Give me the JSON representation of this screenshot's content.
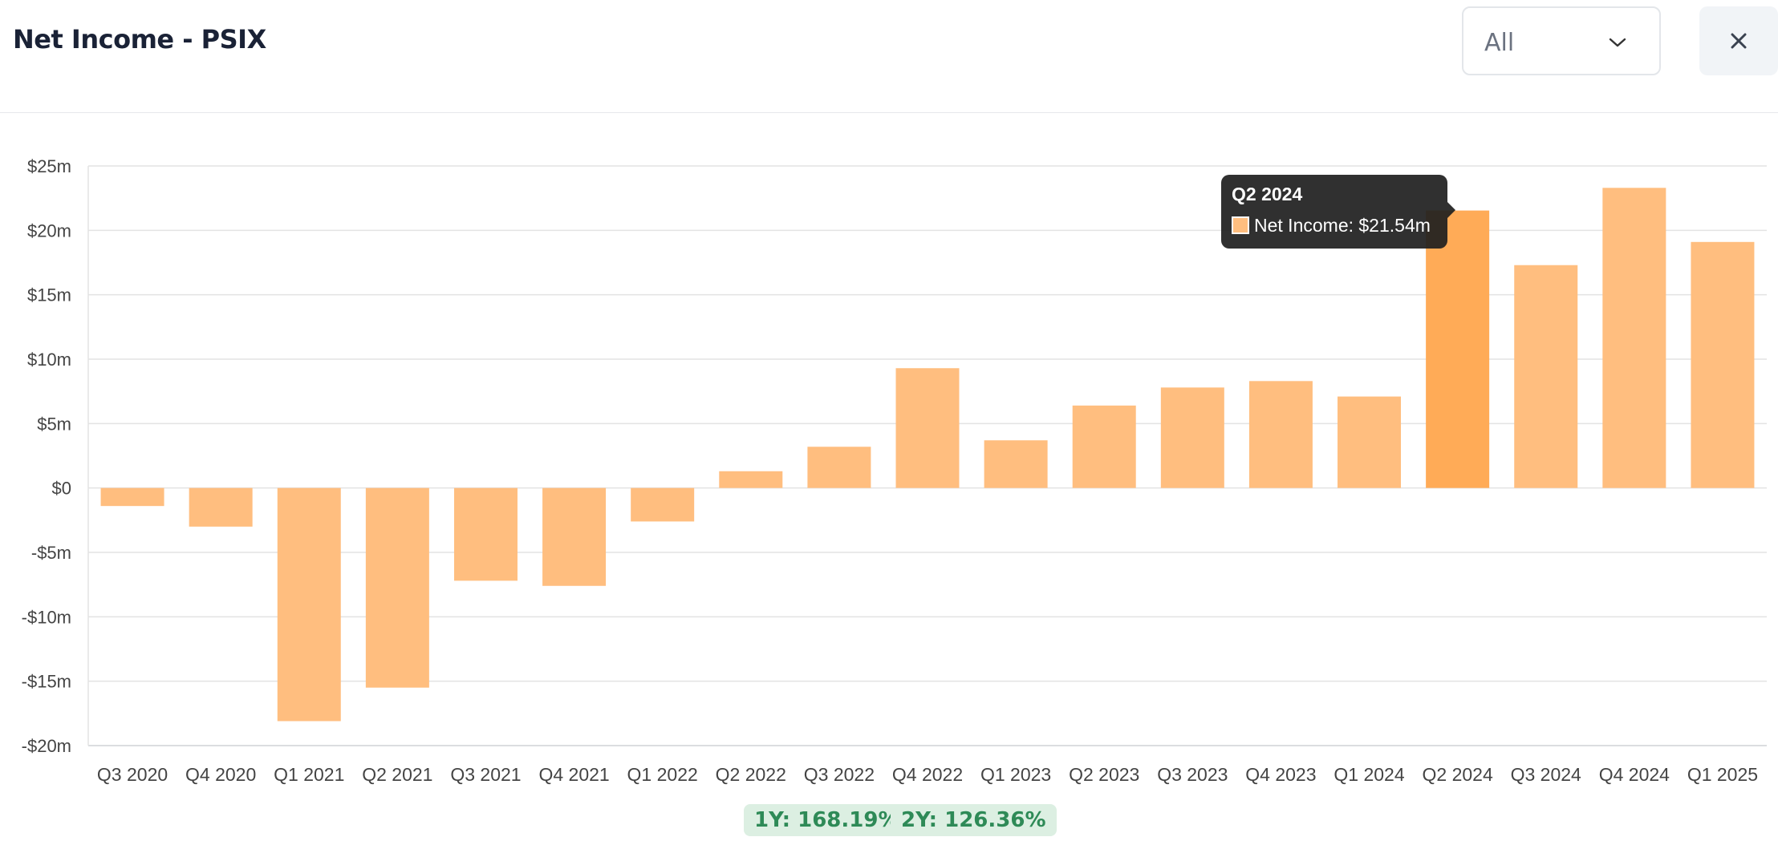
{
  "header": {
    "title": "Net Income - PSIX",
    "period_select": {
      "value": "All",
      "icon": "chevron-down-icon"
    },
    "close_icon": "close-icon"
  },
  "chart_data": {
    "type": "bar",
    "categories": [
      "Q3 2020",
      "Q4 2020",
      "Q1 2021",
      "Q2 2021",
      "Q3 2021",
      "Q4 2021",
      "Q1 2022",
      "Q2 2022",
      "Q3 2022",
      "Q4 2022",
      "Q1 2023",
      "Q2 2023",
      "Q3 2023",
      "Q4 2023",
      "Q1 2024",
      "Q2 2024",
      "Q3 2024",
      "Q4 2024",
      "Q1 2025"
    ],
    "series": [
      {
        "name": "Net Income",
        "values": [
          -1.4,
          -3.0,
          -18.1,
          -15.5,
          -7.2,
          -7.6,
          -2.6,
          1.3,
          3.2,
          9.3,
          3.7,
          6.4,
          7.8,
          8.3,
          7.1,
          21.54,
          17.3,
          23.3,
          19.1
        ]
      }
    ],
    "unit": "$m",
    "ylim": [
      -20,
      25
    ],
    "y_ticks": [
      25,
      20,
      15,
      10,
      5,
      0,
      -5,
      -10,
      -15,
      -20
    ],
    "y_tick_labels": [
      "$25m",
      "$20m",
      "$15m",
      "$10m",
      "$5m",
      "$0",
      "-$5m",
      "-$10m",
      "-$15m",
      "-$20m"
    ],
    "grid": true,
    "highlighted_category": "Q2 2024",
    "bar_color": "#ffbe7f",
    "highlight_color": "#ffab57",
    "tooltip": {
      "title": "Q2 2024",
      "label": "Net Income: $21.54m"
    }
  },
  "growth_badges": [
    {
      "label": "1Y: 168.19%"
    },
    {
      "label": "2Y: 126.36%"
    }
  ]
}
